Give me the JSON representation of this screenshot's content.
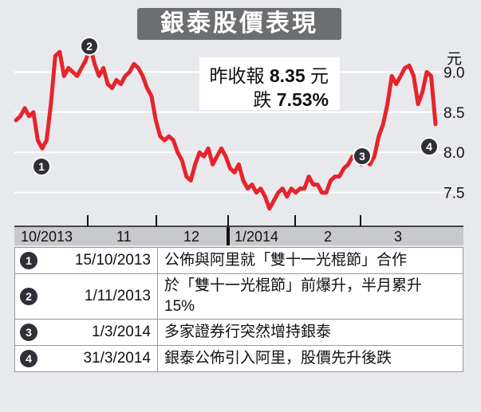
{
  "title": "銀泰股價表現",
  "close_box": {
    "line1_prefix": "昨收報 ",
    "line1_value": "8.35",
    "line1_suffix": "元",
    "line2_prefix": "跌 ",
    "line2_value": "7.53%"
  },
  "chart_data": {
    "type": "line",
    "title": "銀泰股價表現",
    "ylabel": "元",
    "ylim": [
      7.1,
      9.4
    ],
    "yticks": [
      7.5,
      8.0,
      8.5,
      9.0
    ],
    "x_tick_labels": [
      "10/2013",
      "11",
      "12",
      "1/2014",
      "2",
      "3"
    ],
    "line_color": "#e5242b",
    "series": [
      {
        "values": [
          8.4,
          8.45,
          8.55,
          8.45,
          8.5,
          8.15,
          8.05,
          8.15,
          8.6,
          9.2,
          9.25,
          8.95,
          9.05,
          9.0,
          8.95,
          9.05,
          9.15,
          9.32,
          9.1,
          8.95,
          9.05,
          8.85,
          8.8,
          8.9,
          8.85,
          8.95,
          9.0,
          9.1,
          9.05,
          8.95,
          8.8,
          8.7,
          8.4,
          8.2,
          8.15,
          8.2,
          8.15,
          8.0,
          7.9,
          7.7,
          7.65,
          7.85,
          8.0,
          7.95,
          8.05,
          7.85,
          7.95,
          8.05,
          7.95,
          7.8,
          7.75,
          7.85,
          7.65,
          7.55,
          7.6,
          7.5,
          7.55,
          7.45,
          7.3,
          7.4,
          7.5,
          7.55,
          7.45,
          7.55,
          7.5,
          7.55,
          7.55,
          7.7,
          7.6,
          7.6,
          7.5,
          7.5,
          7.65,
          7.7,
          7.7,
          7.8,
          7.85,
          7.95,
          7.9,
          7.85,
          7.9,
          7.85,
          7.95,
          8.2,
          8.35,
          8.6,
          8.95,
          8.85,
          8.95,
          9.05,
          9.08,
          8.95,
          8.6,
          8.75,
          9.0,
          8.95,
          8.35
        ]
      }
    ],
    "markers": [
      {
        "label": "1",
        "date": "15/10/2013",
        "value": 8.0
      },
      {
        "label": "2",
        "date": "1/11/2013",
        "value": 9.45
      },
      {
        "label": "3",
        "date": "1/3/2014",
        "value": 7.95
      },
      {
        "label": "4",
        "date": "31/3/2014",
        "value": 8.05
      }
    ]
  },
  "events": [
    {
      "badge": "1",
      "date": "15/10/2013",
      "text": "公佈與阿里就「雙十一光棍節」合作"
    },
    {
      "badge": "2",
      "date": "1/11/2013",
      "text": "於「雙十一光棍節」前爆升，半月累升 15%"
    },
    {
      "badge": "3",
      "date": "1/3/2014",
      "text": "多家證券行突然增持銀泰"
    },
    {
      "badge": "4",
      "date": "31/3/2014",
      "text": "銀泰公佈引入阿里，股價先升後跌"
    }
  ]
}
